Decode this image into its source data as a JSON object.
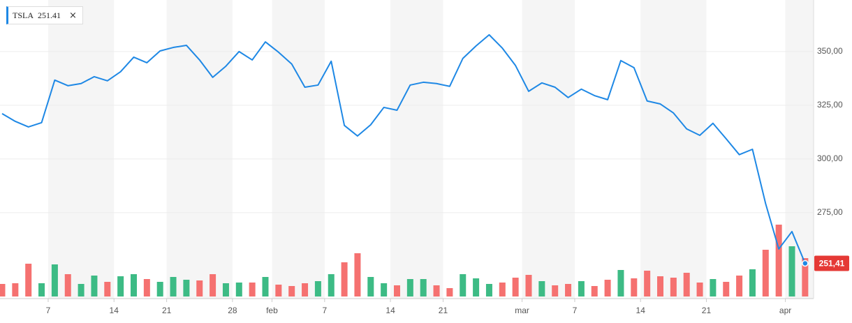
{
  "chart_data": {
    "type": "line",
    "categories": [
      null,
      null,
      null,
      null,
      "7",
      null,
      null,
      null,
      null,
      "14",
      null,
      null,
      null,
      "21",
      null,
      null,
      null,
      null,
      "28",
      null,
      null,
      "feb",
      null,
      null,
      null,
      "7",
      null,
      null,
      null,
      null,
      "14",
      null,
      null,
      null,
      "21",
      null,
      null,
      null,
      null,
      null,
      "mar",
      null,
      null,
      null,
      "7",
      null,
      null,
      null,
      null,
      "14",
      null,
      null,
      null,
      null,
      "21",
      null,
      null,
      null,
      null,
      null,
      "apr",
      null
    ],
    "series": [
      {
        "name": "TSLA",
        "color": "#1e88e5",
        "values": [
          321.1,
          317.5,
          314.9,
          316.9,
          336.7,
          334.1,
          335.1,
          338.3,
          336.4,
          340.6,
          347.4,
          344.8,
          350.3,
          351.9,
          352.9,
          346.1,
          338.0,
          343.2,
          350.0,
          346.1,
          354.5,
          349.7,
          344.2,
          333.4,
          334.4,
          345.5,
          315.6,
          310.7,
          315.9,
          324.0,
          322.7,
          334.4,
          335.7,
          335.1,
          333.8,
          346.8,
          352.6,
          357.8,
          351.6,
          343.5,
          331.5,
          335.4,
          333.4,
          328.6,
          332.5,
          329.5,
          327.6,
          345.8,
          342.5,
          327.0,
          325.6,
          321.4,
          314.0,
          311.0,
          316.6,
          309.4,
          302.0,
          304.5,
          279.2,
          258.1,
          266.2,
          251.41
        ],
        "value_labels": [
          null,
          null,
          null,
          null,
          null,
          null,
          null,
          null,
          null,
          null,
          null,
          null,
          null,
          null,
          null,
          null,
          null,
          null,
          null,
          null,
          null,
          null,
          null,
          null,
          null,
          null,
          null,
          null,
          null,
          null,
          null,
          null,
          null,
          null,
          null,
          null,
          null,
          null,
          null,
          null,
          null,
          null,
          null,
          null,
          null,
          null,
          null,
          null,
          null,
          null,
          null,
          null,
          null,
          null,
          null,
          null,
          null,
          null,
          null,
          null,
          null,
          "251,41"
        ]
      },
      {
        "type": "bar",
        "axis": "y2",
        "up_color": "#3dbb85",
        "down_color": "#f57170",
        "values": [
          18,
          19,
          47,
          19,
          46,
          32,
          18,
          30,
          21,
          29,
          32,
          25,
          21,
          28,
          24,
          23,
          32,
          19,
          20,
          20,
          28,
          17,
          15,
          19,
          22,
          32,
          49,
          62,
          28,
          19,
          16,
          25,
          25,
          16,
          12,
          32,
          26,
          18,
          20,
          27,
          31,
          22,
          16,
          18,
          22,
          15,
          24,
          38,
          26,
          37,
          29,
          27,
          34,
          20,
          25,
          21,
          30,
          39,
          67,
          103,
          72,
          55
        ]
      }
    ],
    "ylim": [
      235,
      374
    ],
    "yticks": [
      {
        "value": 275,
        "label": "275,00"
      },
      {
        "value": 300,
        "label": "300,00"
      },
      {
        "value": 325,
        "label": "325,00"
      },
      {
        "value": 350,
        "label": "350,00"
      }
    ],
    "y2lim": [
      0,
      110
    ],
    "grid": true
  }
}
